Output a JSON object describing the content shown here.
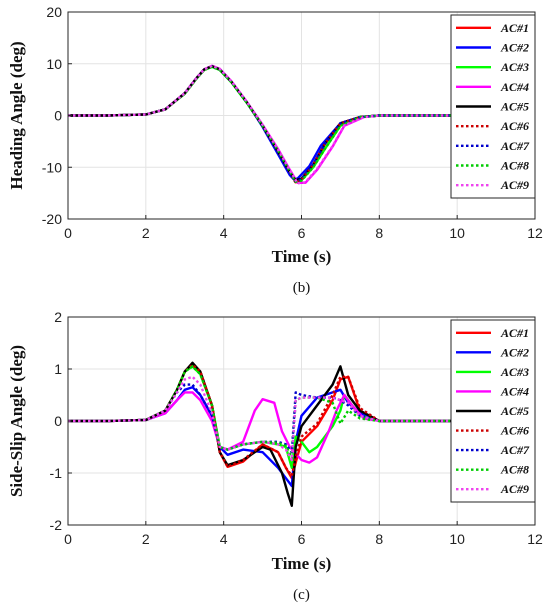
{
  "chart_data": [
    {
      "type": "line",
      "caption": "(b)",
      "xlabel": "Time (s)",
      "ylabel": "Heading Angle (deg)",
      "xlim": [
        0,
        12
      ],
      "ylim": [
        -20,
        20
      ],
      "xticks": [
        0,
        2,
        4,
        6,
        8,
        10,
        12
      ],
      "yticks": [
        -20,
        -10,
        0,
        10,
        20
      ],
      "grid": true,
      "legend_position": "top-right",
      "series": [
        {
          "name": "AC#1",
          "color": "#ff0000",
          "dash": "solid",
          "x": [
            0,
            1,
            2,
            2.5,
            3,
            3.3,
            3.5,
            3.7,
            3.9,
            4.2,
            4.6,
            5,
            5.4,
            5.7,
            5.85,
            6,
            6.3,
            6.6,
            7,
            7.5,
            8,
            9,
            10,
            11,
            12
          ],
          "y": [
            0,
            0,
            0.2,
            1.2,
            4.3,
            7.2,
            8.9,
            9.5,
            8.9,
            6.5,
            2.5,
            -2,
            -7,
            -11,
            -12.9,
            -12.3,
            -9.5,
            -5.5,
            -1.5,
            -0.3,
            0,
            0,
            0,
            0,
            0
          ]
        },
        {
          "name": "AC#2",
          "color": "#0000ff",
          "dash": "solid",
          "x": [
            0,
            1,
            2,
            2.5,
            3,
            3.3,
            3.5,
            3.7,
            3.9,
            4.2,
            4.6,
            5,
            5.4,
            5.7,
            5.8,
            5.9,
            6.2,
            6.5,
            7,
            7.5,
            8,
            9,
            10,
            11,
            12
          ],
          "y": [
            0,
            0,
            0.2,
            1.2,
            4.3,
            7.2,
            8.9,
            9.5,
            8.9,
            6.5,
            2.5,
            -2.2,
            -7.5,
            -11.5,
            -12.3,
            -12.2,
            -9.8,
            -5.8,
            -1.5,
            -0.3,
            0,
            0,
            0,
            0,
            0
          ]
        },
        {
          "name": "AC#3",
          "color": "#00ff00",
          "dash": "solid",
          "x": [
            0,
            1,
            2,
            2.5,
            3,
            3.3,
            3.5,
            3.7,
            3.9,
            4.2,
            4.6,
            5,
            5.4,
            5.7,
            5.85,
            6,
            6.3,
            6.6,
            7,
            7.5,
            8,
            9,
            10,
            11,
            12
          ],
          "y": [
            0,
            0,
            0.2,
            1.2,
            4.2,
            7.1,
            8.8,
            9.4,
            8.8,
            6.4,
            2.4,
            -2,
            -6.8,
            -10.8,
            -12.7,
            -12.5,
            -10,
            -6.5,
            -2,
            -0.3,
            0,
            0,
            0,
            0,
            0
          ]
        },
        {
          "name": "AC#4",
          "color": "#ff00ff",
          "dash": "solid",
          "x": [
            0,
            1,
            2,
            2.5,
            3,
            3.3,
            3.5,
            3.7,
            3.9,
            4.2,
            4.6,
            5,
            5.4,
            5.7,
            5.9,
            6.1,
            6.4,
            6.8,
            7.1,
            7.6,
            8,
            9,
            10,
            11,
            12
          ],
          "y": [
            0,
            0,
            0.2,
            1.2,
            4.3,
            7.2,
            8.9,
            9.6,
            9,
            6.6,
            2.6,
            -1.8,
            -6.5,
            -10.5,
            -13,
            -13,
            -10.5,
            -6,
            -2,
            -0.3,
            0,
            0,
            0,
            0,
            0
          ]
        },
        {
          "name": "AC#5",
          "color": "#000000",
          "dash": "solid",
          "x": [
            0,
            1,
            2,
            2.5,
            3,
            3.3,
            3.5,
            3.7,
            3.9,
            4.2,
            4.6,
            5,
            5.4,
            5.7,
            5.85,
            6,
            6.3,
            6.6,
            7,
            7.5,
            8,
            9,
            10,
            11,
            12
          ],
          "y": [
            0,
            0,
            0.2,
            1.2,
            4.3,
            7.2,
            8.9,
            9.5,
            8.9,
            6.5,
            2.5,
            -2,
            -7,
            -11,
            -12.5,
            -12.2,
            -9.5,
            -5.5,
            -1.5,
            -0.3,
            0,
            0,
            0,
            0,
            0
          ]
        },
        {
          "name": "AC#6",
          "color": "#cc0000",
          "dash": "dot",
          "x": [
            0,
            1,
            2,
            2.5,
            3,
            3.3,
            3.5,
            3.7,
            3.9,
            4.2,
            4.6,
            5,
            5.4,
            5.7,
            5.85,
            6,
            6.3,
            6.6,
            7,
            7.5,
            8,
            9,
            10,
            11,
            12
          ],
          "y": [
            0,
            0,
            0.2,
            1.2,
            4.3,
            7.2,
            8.9,
            9.5,
            8.9,
            6.5,
            2.5,
            -2,
            -7,
            -11,
            -13,
            -12.4,
            -9.5,
            -5.5,
            -1.5,
            -0.3,
            0,
            0,
            0,
            0,
            0
          ]
        },
        {
          "name": "AC#7",
          "color": "#0000cc",
          "dash": "dot",
          "x": [
            0,
            1,
            2,
            2.5,
            3,
            3.3,
            3.5,
            3.7,
            3.9,
            4.2,
            4.6,
            5,
            5.4,
            5.7,
            5.85,
            6,
            6.3,
            6.6,
            7,
            7.5,
            8,
            9,
            10,
            11,
            12
          ],
          "y": [
            0,
            0,
            0.2,
            1.2,
            4.3,
            7.2,
            8.9,
            9.5,
            8.9,
            6.5,
            2.5,
            -2,
            -7,
            -11,
            -12.8,
            -12.3,
            -9.5,
            -5.5,
            -1.5,
            -0.3,
            0,
            0,
            0,
            0,
            0
          ]
        },
        {
          "name": "AC#8",
          "color": "#00cc00",
          "dash": "dot",
          "x": [
            0,
            1,
            2,
            2.5,
            3,
            3.3,
            3.5,
            3.7,
            3.9,
            4.2,
            4.6,
            5,
            5.4,
            5.7,
            5.85,
            6,
            6.3,
            6.6,
            7,
            7.5,
            8,
            9,
            10,
            11,
            12
          ],
          "y": [
            0,
            0,
            0.2,
            1.2,
            4.2,
            7.1,
            8.8,
            9.4,
            8.8,
            6.4,
            2.4,
            -2,
            -6.8,
            -10.8,
            -12.8,
            -12.6,
            -10,
            -6.5,
            -2,
            -0.3,
            0,
            0,
            0,
            0,
            0
          ]
        },
        {
          "name": "AC#9",
          "color": "#ee44ee",
          "dash": "dot",
          "x": [
            0,
            1,
            2,
            2.5,
            3,
            3.3,
            3.5,
            3.7,
            3.9,
            4.2,
            4.6,
            5,
            5.4,
            5.7,
            5.9,
            6.1,
            6.4,
            6.8,
            7.1,
            7.6,
            8,
            9,
            10,
            11,
            12
          ],
          "y": [
            0,
            0,
            0.2,
            1.2,
            4.3,
            7.2,
            8.9,
            9.6,
            9,
            6.6,
            2.6,
            -1.8,
            -6.6,
            -10.6,
            -13.1,
            -12.9,
            -10.3,
            -5.9,
            -1.9,
            -0.3,
            0,
            0,
            0,
            0,
            0
          ]
        }
      ]
    },
    {
      "type": "line",
      "caption": "(c)",
      "xlabel": "Time (s)",
      "ylabel": "Side-Slip Angle (deg)",
      "xlim": [
        0,
        12
      ],
      "ylim": [
        -2,
        2
      ],
      "xticks": [
        0,
        2,
        4,
        6,
        8,
        10,
        12
      ],
      "yticks": [
        -2,
        -1,
        0,
        1,
        2
      ],
      "grid": true,
      "legend_position": "top-right",
      "series": [
        {
          "name": "AC#1",
          "color": "#ff0000",
          "dash": "solid",
          "x": [
            0,
            1,
            2,
            2.5,
            2.8,
            3,
            3.2,
            3.4,
            3.7,
            3.9,
            4.1,
            4.5,
            5,
            5.4,
            5.6,
            5.75,
            5.85,
            6,
            6.4,
            6.8,
            7,
            7.2,
            7.5,
            8,
            9,
            10,
            11,
            12
          ],
          "y": [
            0,
            0,
            0.02,
            0.2,
            0.6,
            0.95,
            1.1,
            0.95,
            0.3,
            -0.6,
            -0.88,
            -0.78,
            -0.45,
            -0.6,
            -0.9,
            -1.1,
            -0.8,
            -0.4,
            -0.1,
            0.4,
            0.8,
            0.85,
            0.2,
            0,
            0,
            0,
            0,
            0
          ]
        },
        {
          "name": "AC#2",
          "color": "#0000ff",
          "dash": "solid",
          "x": [
            0,
            1,
            2,
            2.5,
            2.8,
            3,
            3.2,
            3.4,
            3.7,
            3.9,
            4.1,
            4.5,
            5,
            5.4,
            5.6,
            5.75,
            5.85,
            6,
            6.4,
            6.8,
            7,
            7.2,
            7.5,
            8,
            9,
            10,
            11,
            12
          ],
          "y": [
            0,
            0,
            0.02,
            0.15,
            0.4,
            0.6,
            0.65,
            0.5,
            0.1,
            -0.5,
            -0.65,
            -0.55,
            -0.6,
            -0.9,
            -1.1,
            -1.25,
            -0.4,
            0.1,
            0.45,
            0.55,
            0.6,
            0.35,
            0.15,
            0,
            0,
            0,
            0,
            0
          ]
        },
        {
          "name": "AC#3",
          "color": "#00ff00",
          "dash": "solid",
          "x": [
            0,
            1,
            2,
            2.5,
            2.8,
            3,
            3.2,
            3.4,
            3.7,
            3.9,
            4.1,
            4.5,
            5,
            5.4,
            5.6,
            5.75,
            5.85,
            6,
            6.2,
            6.4,
            6.8,
            7,
            7.1,
            7.3,
            7.5,
            8,
            9,
            10,
            11,
            12
          ],
          "y": [
            0,
            0,
            0.02,
            0.2,
            0.6,
            0.95,
            1.05,
            0.9,
            0.3,
            -0.5,
            -0.55,
            -0.45,
            -0.4,
            -0.45,
            -0.5,
            -0.9,
            -0.3,
            -0.4,
            -0.6,
            -0.5,
            -0.1,
            0.2,
            0.5,
            0.3,
            0.1,
            0,
            0,
            0,
            0,
            0
          ]
        },
        {
          "name": "AC#4",
          "color": "#ff00ff",
          "dash": "solid",
          "x": [
            0,
            1,
            2,
            2.5,
            2.8,
            3,
            3.2,
            3.4,
            3.7,
            3.9,
            4.1,
            4.5,
            4.8,
            5,
            5.3,
            5.5,
            5.7,
            6,
            6.2,
            6.4,
            6.7,
            6.9,
            7.1,
            7.3,
            7.6,
            8,
            9,
            10,
            11,
            12
          ],
          "y": [
            0,
            0,
            0.02,
            0.15,
            0.4,
            0.55,
            0.55,
            0.4,
            0,
            -0.5,
            -0.55,
            -0.4,
            0.2,
            0.42,
            0.35,
            -0.2,
            -0.5,
            -0.75,
            -0.8,
            -0.7,
            -0.2,
            0.2,
            0.5,
            0.3,
            0.05,
            0,
            0,
            0,
            0,
            0
          ]
        },
        {
          "name": "AC#5",
          "color": "#000000",
          "dash": "solid",
          "x": [
            0,
            1,
            2,
            2.5,
            2.8,
            3,
            3.2,
            3.4,
            3.7,
            3.9,
            4.1,
            4.5,
            5,
            5.2,
            5.5,
            5.65,
            5.75,
            5.85,
            6,
            6.4,
            6.8,
            7,
            7.2,
            7.5,
            8,
            9,
            10,
            11,
            12
          ],
          "y": [
            0,
            0,
            0.02,
            0.2,
            0.6,
            0.95,
            1.12,
            0.95,
            0.3,
            -0.6,
            -0.85,
            -0.75,
            -0.5,
            -0.55,
            -1.0,
            -1.4,
            -1.63,
            -0.5,
            -0.1,
            0.3,
            0.7,
            1.05,
            0.5,
            0.2,
            0,
            0,
            0,
            0,
            0
          ]
        },
        {
          "name": "AC#6",
          "color": "#cc0000",
          "dash": "dot",
          "x": [
            0,
            1,
            2,
            2.5,
            2.8,
            3,
            3.2,
            3.4,
            3.7,
            3.9,
            4.1,
            4.5,
            5,
            5.4,
            5.6,
            5.75,
            5.85,
            6,
            6.4,
            6.8,
            7,
            7.2,
            7.5,
            8,
            9,
            10,
            11,
            12
          ],
          "y": [
            0,
            0,
            0.02,
            0.2,
            0.6,
            0.95,
            1.08,
            0.95,
            0.3,
            -0.6,
            -0.88,
            -0.75,
            -0.45,
            -0.6,
            -0.9,
            -1.05,
            -0.7,
            -0.3,
            -0.05,
            0.5,
            0.85,
            0.85,
            0.25,
            0,
            0,
            0,
            0,
            0
          ]
        },
        {
          "name": "AC#7",
          "color": "#0000cc",
          "dash": "dot",
          "x": [
            0,
            1,
            2,
            2.5,
            2.8,
            3,
            3.2,
            3.4,
            3.7,
            3.9,
            4.1,
            4.5,
            5,
            5.4,
            5.6,
            5.75,
            5.85,
            6,
            6.4,
            6.8,
            7,
            7.2,
            7.5,
            8,
            9,
            10,
            11,
            12
          ],
          "y": [
            0,
            0,
            0.02,
            0.2,
            0.55,
            0.7,
            0.7,
            0.5,
            0.1,
            -0.5,
            -0.55,
            -0.45,
            -0.4,
            -0.4,
            -0.45,
            -0.6,
            0.55,
            0.5,
            0.45,
            0.45,
            0.4,
            0.3,
            0.1,
            0,
            0,
            0,
            0,
            0
          ]
        },
        {
          "name": "AC#8",
          "color": "#00cc00",
          "dash": "dot",
          "x": [
            0,
            1,
            2,
            2.5,
            2.8,
            3,
            3.2,
            3.4,
            3.7,
            3.9,
            4.1,
            4.5,
            5,
            5.4,
            5.6,
            5.75,
            5.85,
            6,
            6.4,
            6.8,
            7,
            7.2,
            7.5,
            8,
            9,
            10,
            11,
            12
          ],
          "y": [
            0,
            0,
            0.02,
            0.2,
            0.6,
            0.95,
            1.05,
            0.9,
            0.3,
            -0.5,
            -0.55,
            -0.45,
            -0.4,
            -0.42,
            -0.48,
            -0.7,
            0.4,
            0.45,
            0.45,
            0.35,
            -0.05,
            0.2,
            0.05,
            0,
            0,
            0,
            0,
            0
          ]
        },
        {
          "name": "AC#9",
          "color": "#ee44ee",
          "dash": "dot",
          "x": [
            0,
            1,
            2,
            2.5,
            2.8,
            3,
            3.2,
            3.4,
            3.7,
            3.9,
            4.1,
            4.5,
            5,
            5.4,
            5.6,
            5.75,
            5.85,
            6,
            6.4,
            6.8,
            7,
            7.2,
            7.5,
            8,
            9,
            10,
            11,
            12
          ],
          "y": [
            0,
            0,
            0.02,
            0.2,
            0.55,
            0.8,
            0.85,
            0.7,
            0.15,
            -0.5,
            -0.55,
            -0.45,
            -0.4,
            -0.45,
            -0.55,
            -0.75,
            0.4,
            0.45,
            0.45,
            0.45,
            0.4,
            0.35,
            0.1,
            0,
            0,
            0,
            0,
            0
          ]
        }
      ]
    }
  ]
}
